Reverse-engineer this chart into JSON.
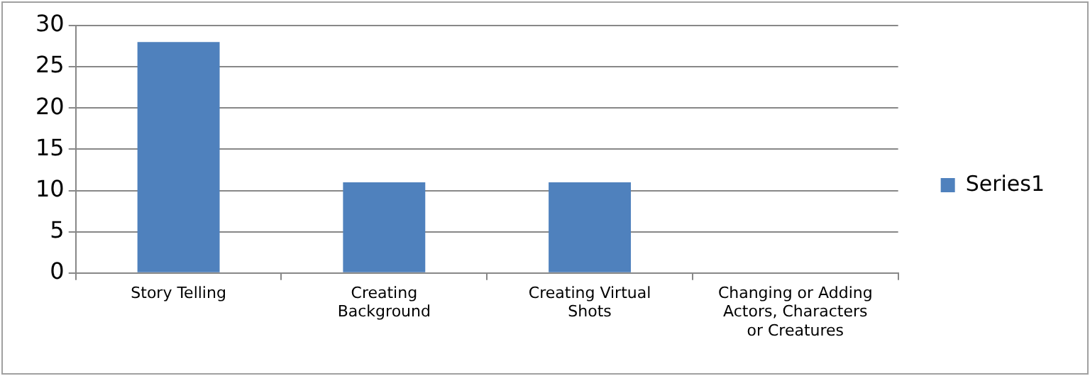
{
  "chart_data": {
    "type": "bar",
    "categories": [
      "Story Telling",
      "Creating Background",
      "Creating Virtual Shots",
      "Changing or Adding Actors, Characters or Creatures"
    ],
    "series": [
      {
        "name": "Series1",
        "color": "#4f81bd",
        "values": [
          28,
          11,
          11,
          0
        ]
      }
    ],
    "ylim": [
      0,
      30
    ],
    "yticks": [
      0,
      5,
      10,
      15,
      20,
      25,
      30
    ],
    "grid": "y",
    "legend": "right"
  }
}
